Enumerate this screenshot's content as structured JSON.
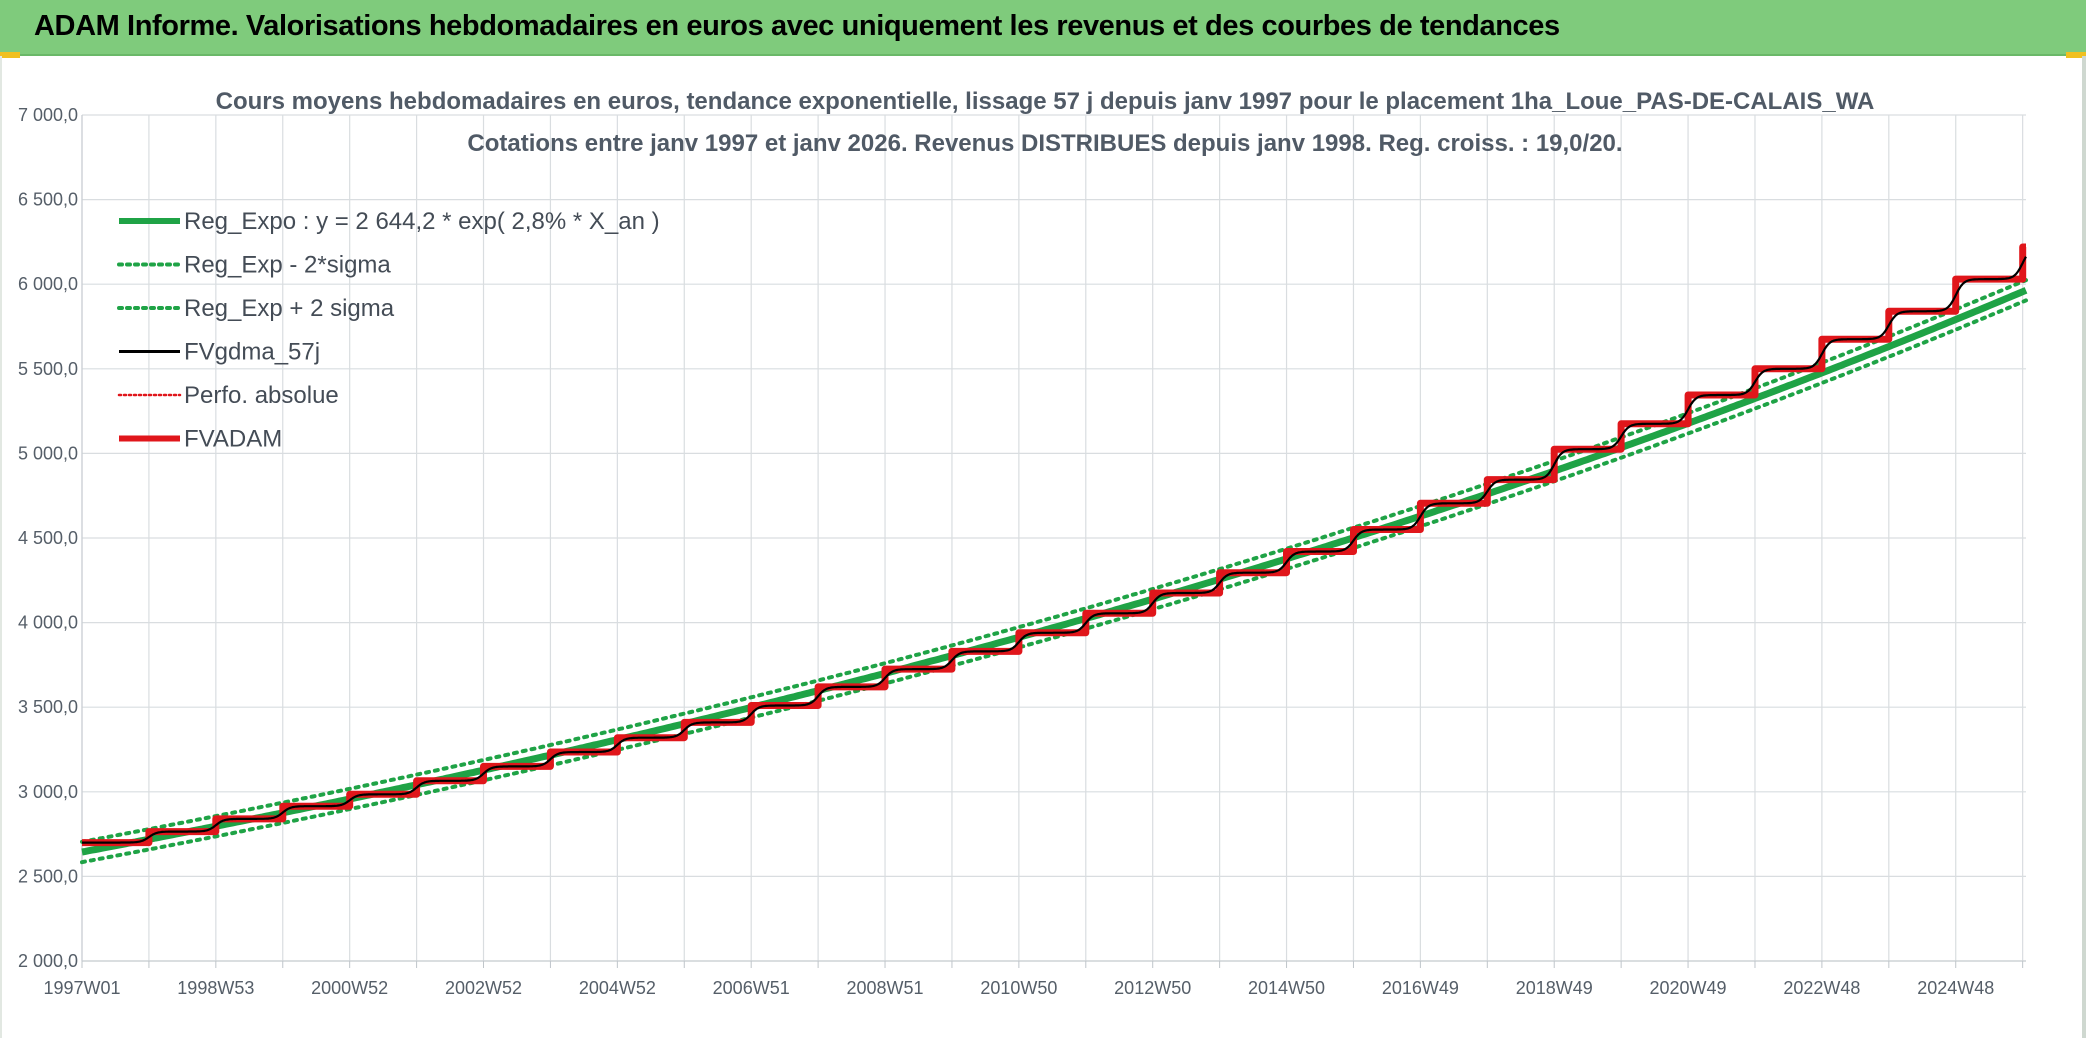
{
  "header": {
    "title": "ADAM Informe. Valorisations hebdomadaires en euros avec uniquement les revenus et des courbes de tendances"
  },
  "chart_data": {
    "type": "line",
    "title_line1": "Cours moyens hebdomadaires en euros, tendance exponentielle, lissage 57 j depuis janv 1997 pour le placement 1ha_Loue_PAS-DE-CALAIS_WA",
    "title_line2": "Cotations entre janv 1997 et janv 2026. Revenus DISTRIBUES depuis janv 1998. Reg. croiss. : 19,0/20.",
    "ylim": [
      2000,
      7000
    ],
    "y_ticks": [
      "2 000,0",
      "2 500,0",
      "3 000,0",
      "3 500,0",
      "4 000,0",
      "4 500,0",
      "5 000,0",
      "5 500,0",
      "6 000,0",
      "6 500,0",
      "7 000,0"
    ],
    "y_tick_values": [
      2000,
      2500,
      3000,
      3500,
      4000,
      4500,
      5000,
      5500,
      6000,
      6500,
      7000
    ],
    "x_range_years": [
      1997.0,
      2026.05
    ],
    "x_ticks": [
      "1997W01",
      "1998W53",
      "2000W52",
      "2002W52",
      "2004W52",
      "2006W51",
      "2008W51",
      "2010W50",
      "2012W50",
      "2014W50",
      "2016W49",
      "2018W49",
      "2020W49",
      "2022W48",
      "2024W48"
    ],
    "x_tick_years": [
      1997.0,
      1999.0,
      2001.0,
      2003.0,
      2005.0,
      2007.0,
      2009.0,
      2011.0,
      2013.0,
      2015.0,
      2017.0,
      2019.0,
      2021.0,
      2023.0,
      2025.0
    ],
    "x_minor_tick_years": [
      1998.0,
      2000.0,
      2002.0,
      2004.0,
      2006.0,
      2008.0,
      2010.0,
      2012.0,
      2014.0,
      2016.0,
      2018.0,
      2020.0,
      2022.0,
      2024.0,
      2026.0
    ],
    "grid": true,
    "legend_position": "top-left",
    "series": [
      {
        "name": "Reg_Expo : y = 2 644,2 * exp( 2,8% *  X_an )",
        "color": "#1fa346",
        "style": "solid-thick",
        "model": {
          "a": 2644.2,
          "r": 0.028,
          "offset": 0
        }
      },
      {
        "name": "Reg_Exp - 2*sigma",
        "color": "#1fa346",
        "style": "dotted",
        "model": {
          "a": 2644.2,
          "r": 0.028,
          "offset": -60
        }
      },
      {
        "name": "Reg_Exp + 2 sigma",
        "color": "#1fa346",
        "style": "dotted",
        "model": {
          "a": 2644.2,
          "r": 0.028,
          "offset": 60
        }
      },
      {
        "name": "FVgdma_57j",
        "color": "#000000",
        "style": "solid"
      },
      {
        "name": "Perfo. absolue",
        "color": "#e0161b",
        "style": "dotted-thin"
      },
      {
        "name": "FVADAM",
        "color": "#e0161b",
        "style": "solid-thick"
      }
    ],
    "fvadam_annual_steps": {
      "years": [
        1997,
        1998,
        1999,
        2000,
        2001,
        2002,
        2003,
        2004,
        2005,
        2006,
        2007,
        2008,
        2009,
        2010,
        2011,
        2012,
        2013,
        2014,
        2015,
        2016,
        2017,
        2018,
        2019,
        2020,
        2021,
        2022,
        2023,
        2024,
        2025,
        2026
      ],
      "values": [
        2700,
        2765,
        2840,
        2915,
        2985,
        3065,
        3150,
        3235,
        3320,
        3410,
        3510,
        3620,
        3725,
        3830,
        3940,
        4055,
        4175,
        4295,
        4420,
        4550,
        4705,
        4845,
        5025,
        5175,
        5345,
        5500,
        5675,
        5840,
        6030,
        6220
      ]
    }
  }
}
